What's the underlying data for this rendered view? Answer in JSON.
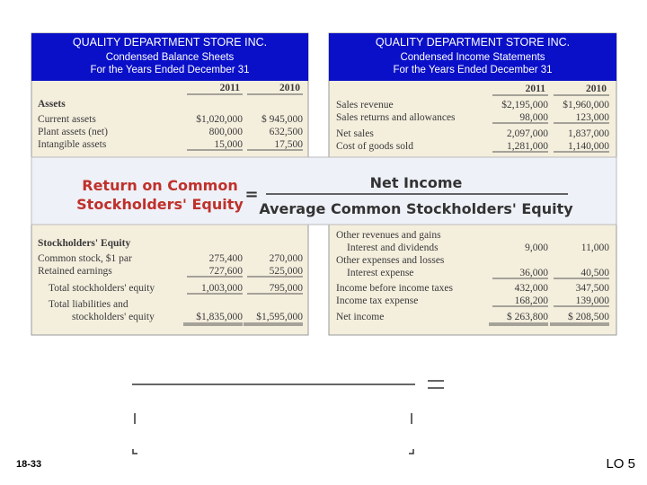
{
  "left": {
    "title": "QUALITY DEPARTMENT STORE INC.",
    "subtitle": "Condensed  Balance Sheets",
    "period": "For the Years Ended December 31",
    "columns": [
      "2011",
      "2010"
    ],
    "rows": [
      [
        "Assets",
        "",
        ""
      ],
      [
        "Current assets",
        "$1,020,000",
        "$ 945,000"
      ],
      [
        "Plant assets (net)",
        "800,000",
        "632,500"
      ],
      [
        "Intangible assets",
        "15,000",
        "17,500"
      ],
      [
        "Stockholders' Equity",
        "",
        ""
      ],
      [
        "Common stock, $1 par",
        "275,400",
        "270,000"
      ],
      [
        "Retained earnings",
        "727,600",
        "525,000"
      ],
      [
        "Total stockholders' equity",
        "1,003,000",
        "795,000"
      ],
      [
        "Total liabilities and",
        "",
        ""
      ],
      [
        "stockholders' equity",
        "$1,835,000",
        "$1,595,000"
      ]
    ]
  },
  "right": {
    "title": "QUALITY DEPARTMENT STORE INC.",
    "subtitle": "Condensed Income Statements",
    "period": "For the Years Ended December 31",
    "columns": [
      "2011",
      "2010"
    ],
    "rows": [
      [
        "Sales revenue",
        "$2,195,000",
        "$1,960,000"
      ],
      [
        "Sales returns and allowances",
        "98,000",
        "123,000"
      ],
      [
        "Net sales",
        "2,097,000",
        "1,837,000"
      ],
      [
        "Cost of goods sold",
        "1,281,000",
        "1,140,000"
      ],
      [
        "Other revenues and gains",
        "",
        ""
      ],
      [
        "Interest and dividends",
        "9,000",
        "11,000"
      ],
      [
        "Other expenses and losses",
        "",
        ""
      ],
      [
        "Interest expense",
        "36,000",
        "40,500"
      ],
      [
        "Income before income taxes",
        "432,000",
        "347,500"
      ],
      [
        "Income tax expense",
        "168,200",
        "139,000"
      ],
      [
        "Net income",
        "$ 263,800",
        "$ 208,500"
      ]
    ]
  },
  "formula": {
    "name_line1": "Return on Common",
    "name_line2": "Stockholders' Equity",
    "equals": "=",
    "numerator": "Net Income",
    "denominator": "Average Common Stockholders' Equity"
  },
  "footer": {
    "slide": "18-33",
    "objective": "LO 5"
  }
}
